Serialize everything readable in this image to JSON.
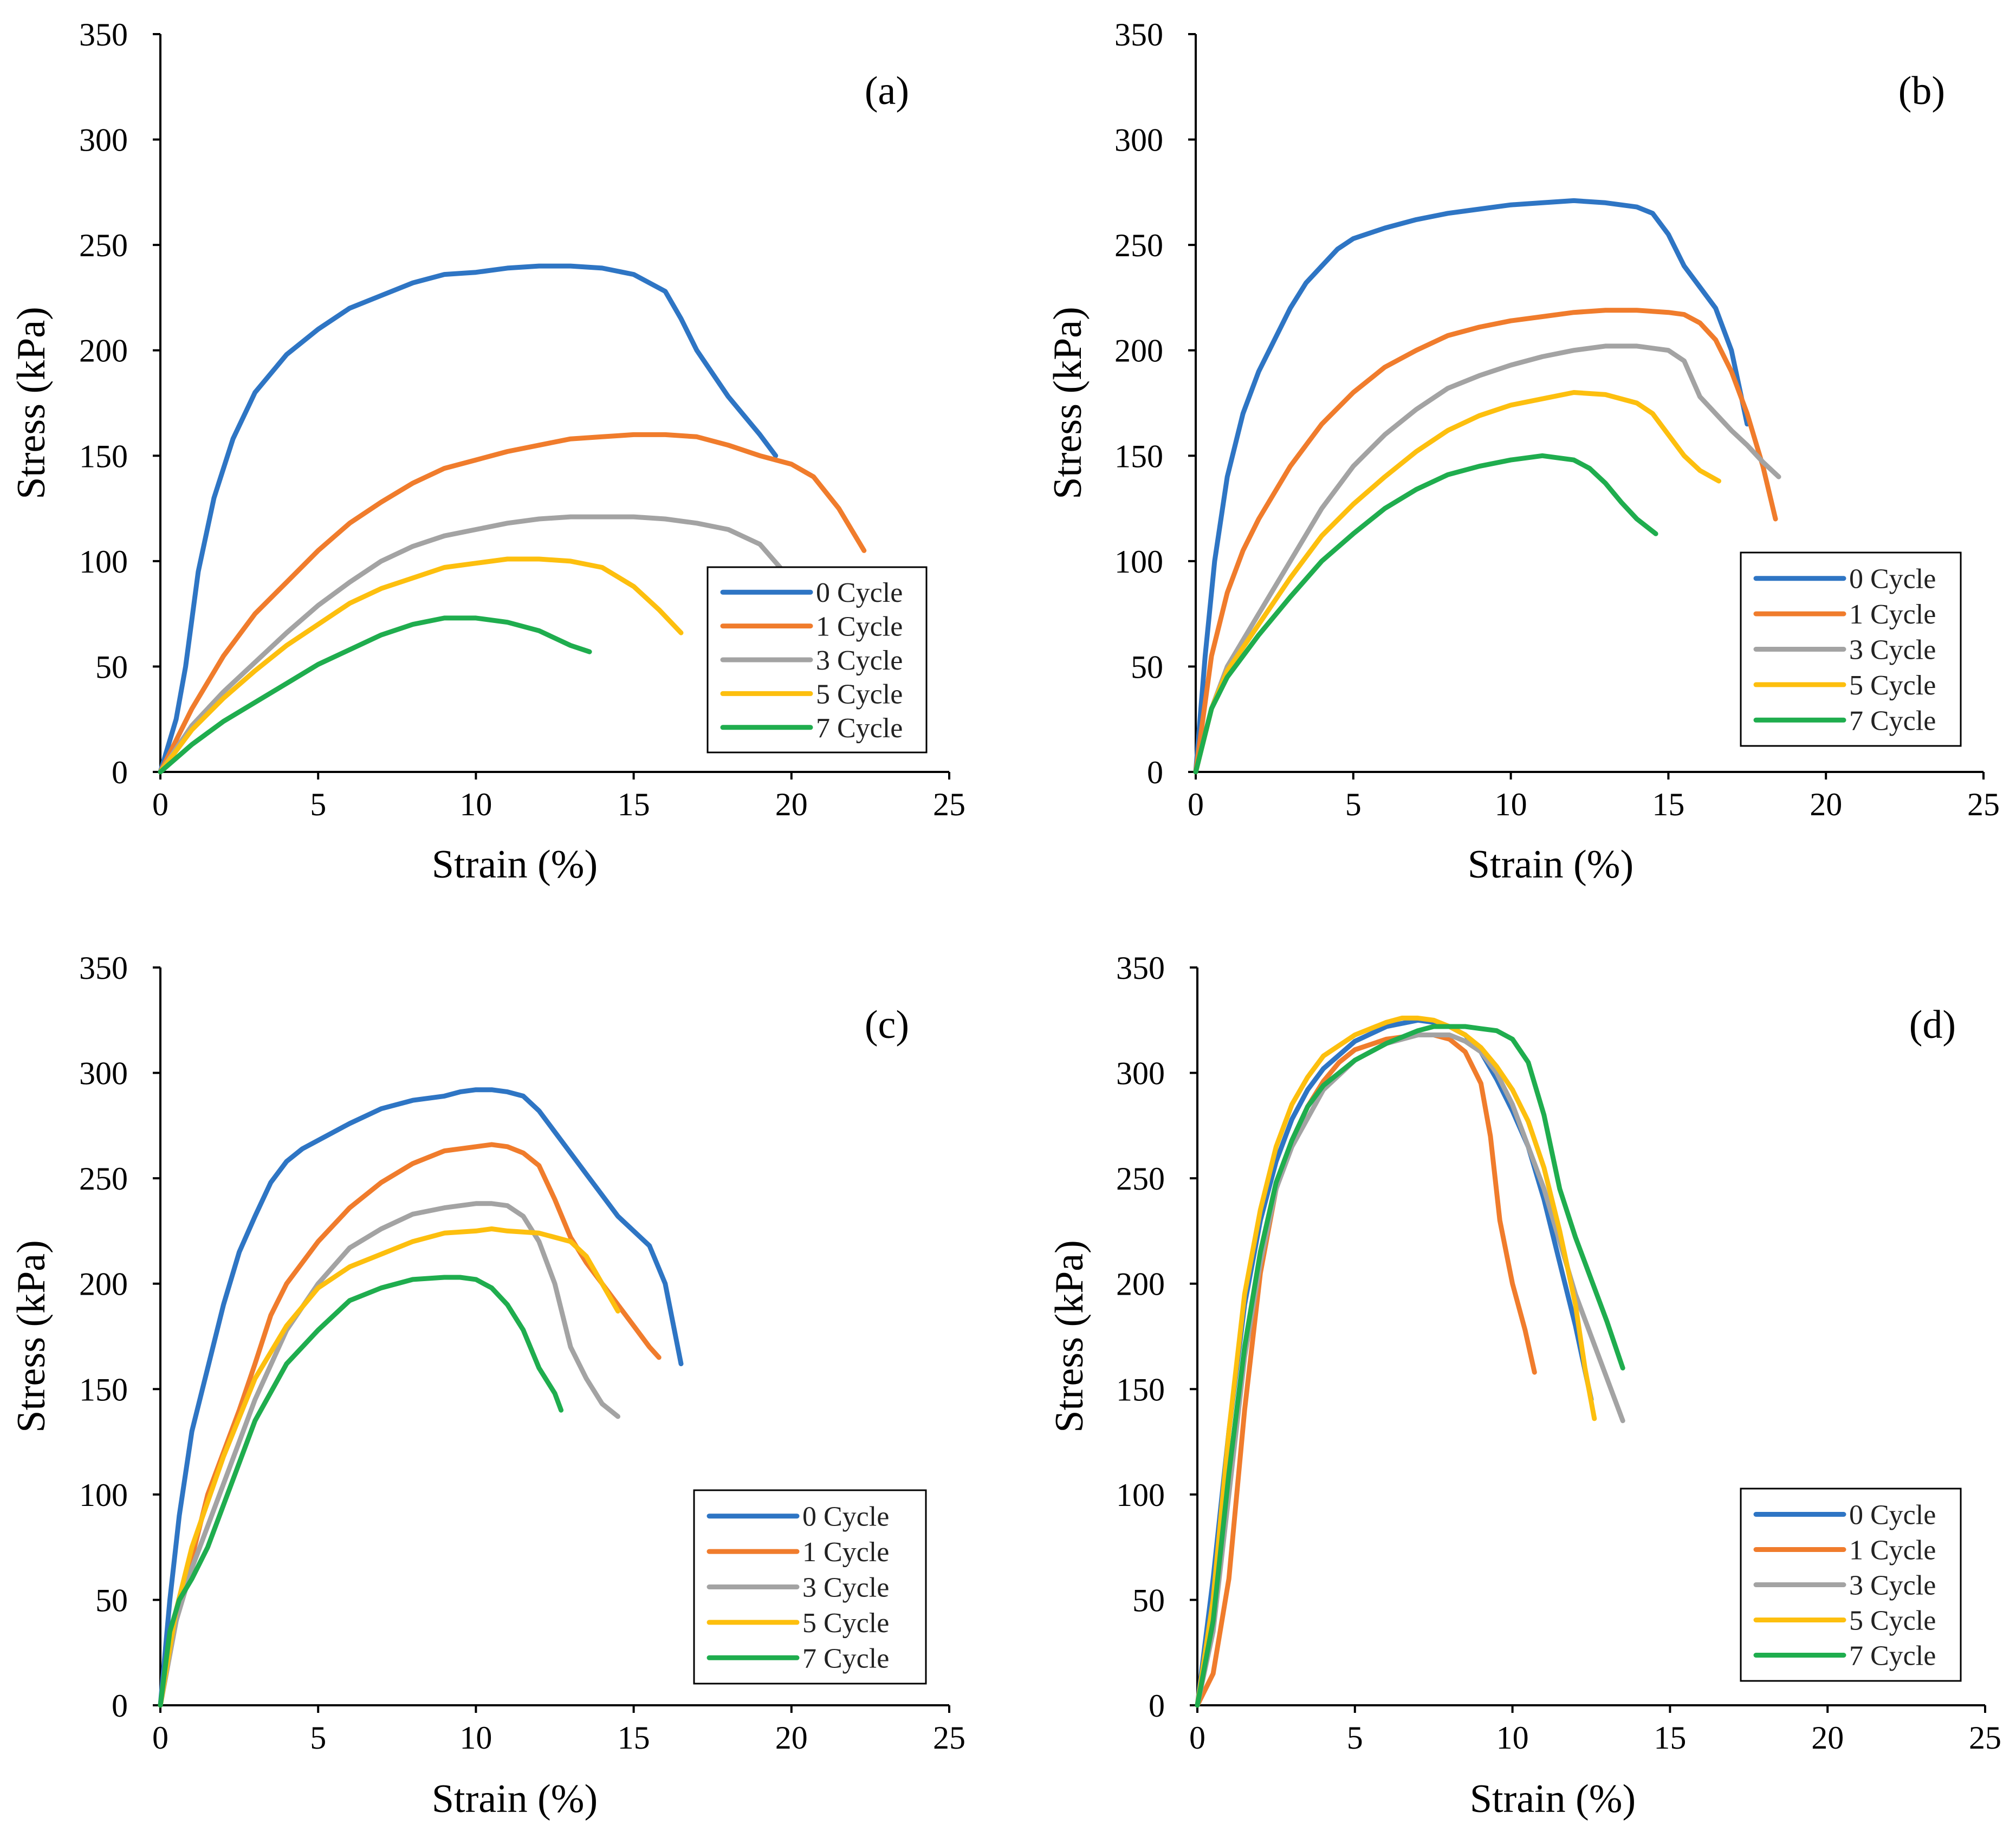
{
  "figure": {
    "series_colors": [
      "#2E75C4",
      "#F07C2C",
      "#A3A3A3",
      "#FDBF0E",
      "#1FAD4E"
    ]
  },
  "chart_data": [
    {
      "type": "line",
      "panel_label": "(a)",
      "xlabel": "Strain (%)",
      "ylabel": "Stress (kPa)",
      "xlim": [
        0,
        25
      ],
      "ylim": [
        0,
        350
      ],
      "xticks": [
        0,
        5,
        10,
        15,
        20,
        25
      ],
      "yticks": [
        0,
        50,
        100,
        150,
        200,
        250,
        300,
        350
      ],
      "legend_position": "bottom-right",
      "series": [
        {
          "name": "0 Cycle",
          "x": [
            0,
            0.5,
            0.8,
            1.2,
            1.7,
            2.3,
            3,
            4,
            5,
            6,
            7,
            8,
            9,
            10,
            11,
            12,
            13,
            14,
            15,
            16,
            16.5,
            17,
            18,
            19,
            19.5
          ],
          "y": [
            0,
            25,
            50,
            95,
            130,
            158,
            180,
            198,
            210,
            220,
            226,
            232,
            236,
            237,
            239,
            240,
            240,
            239,
            236,
            228,
            215,
            200,
            178,
            160,
            150
          ]
        },
        {
          "name": "1 Cycle",
          "x": [
            0,
            1,
            2,
            3,
            4,
            5,
            6,
            7,
            8,
            9,
            10,
            11,
            12,
            13,
            14,
            15,
            16,
            17,
            18,
            19,
            20,
            20.7,
            21.5,
            22.3
          ],
          "y": [
            0,
            30,
            55,
            75,
            90,
            105,
            118,
            128,
            137,
            144,
            148,
            152,
            155,
            158,
            159,
            160,
            160,
            159,
            155,
            150,
            146,
            140,
            125,
            105
          ]
        },
        {
          "name": "3 Cycle",
          "x": [
            0,
            1,
            2,
            3,
            4,
            5,
            6,
            7,
            8,
            9,
            10,
            11,
            12,
            13,
            14,
            15,
            16,
            17,
            18,
            19,
            19.7
          ],
          "y": [
            0,
            22,
            38,
            52,
            66,
            79,
            90,
            100,
            107,
            112,
            115,
            118,
            120,
            121,
            121,
            121,
            120,
            118,
            115,
            108,
            96
          ]
        },
        {
          "name": "5 Cycle",
          "x": [
            0,
            1,
            2,
            3,
            4,
            5,
            6,
            7,
            8,
            9,
            10,
            11,
            12,
            13,
            14,
            15,
            15.8,
            16.5
          ],
          "y": [
            0,
            20,
            35,
            48,
            60,
            70,
            80,
            87,
            92,
            97,
            99,
            101,
            101,
            100,
            97,
            88,
            77,
            66
          ]
        },
        {
          "name": "7 Cycle",
          "x": [
            0,
            1,
            2,
            3,
            4,
            5,
            6,
            7,
            8,
            9,
            10,
            11,
            12,
            13,
            13.6
          ],
          "y": [
            0,
            13,
            24,
            33,
            42,
            51,
            58,
            65,
            70,
            73,
            73,
            71,
            67,
            60,
            57
          ]
        }
      ]
    },
    {
      "type": "line",
      "panel_label": "(b)",
      "xlabel": "Strain (%)",
      "ylabel": "Stress (kPa)",
      "xlim": [
        0,
        25
      ],
      "ylim": [
        0,
        350
      ],
      "xticks": [
        0,
        5,
        10,
        15,
        20,
        25
      ],
      "yticks": [
        0,
        50,
        100,
        150,
        200,
        250,
        300,
        350
      ],
      "legend_position": "bottom-right",
      "series": [
        {
          "name": "0 Cycle",
          "x": [
            0,
            0.3,
            0.6,
            1,
            1.5,
            2,
            2.5,
            3,
            3.5,
            4,
            4.5,
            5,
            6,
            7,
            8,
            9,
            10,
            11,
            12,
            13,
            14,
            14.5,
            15,
            15.5,
            16,
            16.5,
            17,
            17.5
          ],
          "y": [
            0,
            55,
            100,
            140,
            170,
            190,
            205,
            220,
            232,
            240,
            248,
            253,
            258,
            262,
            265,
            267,
            269,
            270,
            271,
            270,
            268,
            265,
            255,
            240,
            230,
            220,
            200,
            165
          ]
        },
        {
          "name": "1 Cycle",
          "x": [
            0,
            0.5,
            1,
            1.5,
            2,
            3,
            4,
            5,
            6,
            7,
            8,
            9,
            10,
            11,
            12,
            13,
            14,
            15,
            15.5,
            16,
            16.5,
            17,
            17.5,
            18,
            18.4
          ],
          "y": [
            0,
            55,
            85,
            105,
            120,
            145,
            165,
            180,
            192,
            200,
            207,
            211,
            214,
            216,
            218,
            219,
            219,
            218,
            217,
            213,
            205,
            190,
            170,
            145,
            120
          ]
        },
        {
          "name": "3 Cycle",
          "x": [
            0,
            0.5,
            1,
            2,
            3,
            4,
            5,
            6,
            7,
            8,
            9,
            10,
            11,
            12,
            13,
            14,
            15,
            15.5,
            16,
            17,
            17.5,
            18,
            18.5
          ],
          "y": [
            0,
            30,
            50,
            75,
            100,
            125,
            145,
            160,
            172,
            182,
            188,
            193,
            197,
            200,
            202,
            202,
            200,
            195,
            178,
            162,
            155,
            147,
            140
          ]
        },
        {
          "name": "5 Cycle",
          "x": [
            0,
            0.5,
            1,
            2,
            3,
            4,
            5,
            6,
            7,
            8,
            9,
            10,
            11,
            12,
            13,
            14,
            14.5,
            15,
            15.5,
            16,
            16.6
          ],
          "y": [
            0,
            30,
            48,
            70,
            92,
            112,
            127,
            140,
            152,
            162,
            169,
            174,
            177,
            180,
            179,
            175,
            170,
            160,
            150,
            143,
            138
          ]
        },
        {
          "name": "7 Cycle",
          "x": [
            0,
            0.5,
            1,
            2,
            3,
            4,
            5,
            6,
            7,
            8,
            9,
            10,
            11,
            12,
            12.5,
            13,
            13.5,
            14,
            14.6
          ],
          "y": [
            0,
            30,
            45,
            65,
            83,
            100,
            113,
            125,
            134,
            141,
            145,
            148,
            150,
            148,
            144,
            137,
            128,
            120,
            113
          ]
        }
      ]
    },
    {
      "type": "line",
      "panel_label": "(c)",
      "xlabel": "Strain (%)",
      "ylabel": "Stress (kPa)",
      "xlim": [
        0,
        25
      ],
      "ylim": [
        0,
        350
      ],
      "xticks": [
        0,
        5,
        10,
        15,
        20,
        25
      ],
      "yticks": [
        0,
        50,
        100,
        150,
        200,
        250,
        300,
        350
      ],
      "legend_position": "bottom-right",
      "series": [
        {
          "name": "0 Cycle",
          "x": [
            0,
            0.3,
            0.6,
            1,
            1.5,
            2,
            2.5,
            3,
            3.5,
            4,
            4.5,
            5,
            6,
            7,
            8,
            9,
            9.5,
            10,
            10.5,
            11,
            11.5,
            12,
            12.5,
            13,
            13.5,
            14,
            14.5,
            15,
            15.5,
            16,
            16.5
          ],
          "y": [
            0,
            50,
            90,
            130,
            160,
            190,
            215,
            232,
            248,
            258,
            264,
            268,
            276,
            283,
            287,
            289,
            291,
            292,
            292,
            291,
            289,
            282,
            272,
            262,
            252,
            242,
            232,
            225,
            218,
            200,
            162
          ]
        },
        {
          "name": "1 Cycle",
          "x": [
            0,
            0.5,
            1,
            1.5,
            2,
            2.5,
            3,
            3.5,
            4,
            5,
            6,
            7,
            8,
            9,
            10,
            10.5,
            11,
            11.5,
            12,
            12.5,
            13,
            13.5,
            14,
            14.5,
            15,
            15.5,
            15.8
          ],
          "y": [
            0,
            40,
            70,
            100,
            120,
            140,
            162,
            185,
            200,
            220,
            236,
            248,
            257,
            263,
            265,
            266,
            265,
            262,
            256,
            240,
            222,
            210,
            200,
            190,
            180,
            170,
            165
          ]
        },
        {
          "name": "3 Cycle",
          "x": [
            0,
            0.5,
            1,
            2,
            3,
            4,
            5,
            6,
            7,
            8,
            9,
            10,
            10.5,
            11,
            11.5,
            12,
            12.5,
            13,
            13.5,
            14,
            14.5
          ],
          "y": [
            0,
            40,
            65,
            105,
            145,
            178,
            200,
            217,
            226,
            233,
            236,
            238,
            238,
            237,
            232,
            220,
            200,
            170,
            155,
            143,
            137
          ]
        },
        {
          "name": "5 Cycle",
          "x": [
            0,
            0.5,
            1,
            2,
            3,
            4,
            5,
            6,
            7,
            8,
            9,
            10,
            10.5,
            11,
            12,
            13,
            13.5,
            14,
            14.5
          ],
          "y": [
            0,
            45,
            75,
            118,
            155,
            180,
            198,
            208,
            214,
            220,
            224,
            225,
            226,
            225,
            224,
            220,
            213,
            200,
            187
          ]
        },
        {
          "name": "7 Cycle",
          "x": [
            0,
            0.3,
            0.6,
            1,
            1.5,
            2,
            3,
            4,
            5,
            6,
            7,
            8,
            9,
            9.5,
            10,
            10.5,
            11,
            11.5,
            12,
            12.5,
            12.7
          ],
          "y": [
            0,
            35,
            50,
            60,
            75,
            95,
            135,
            162,
            178,
            192,
            198,
            202,
            203,
            203,
            202,
            198,
            190,
            178,
            160,
            148,
            140
          ]
        }
      ]
    },
    {
      "type": "line",
      "panel_label": "(d)",
      "xlabel": "Strain (%)",
      "ylabel": "Stress (kPa)",
      "xlim": [
        0,
        25
      ],
      "ylim": [
        0,
        350
      ],
      "xticks": [
        0,
        5,
        10,
        15,
        20,
        25
      ],
      "yticks": [
        0,
        50,
        100,
        150,
        200,
        250,
        300,
        350
      ],
      "legend_position": "bottom-right",
      "series": [
        {
          "name": "0 Cycle",
          "x": [
            0,
            0.5,
            1,
            1.5,
            2,
            2.5,
            3,
            3.5,
            4,
            5,
            6,
            7,
            7.5,
            8,
            8.5,
            9,
            9.5,
            10,
            10.5,
            11,
            11.5,
            12,
            12.5
          ],
          "y": [
            0,
            60,
            130,
            190,
            230,
            258,
            278,
            292,
            302,
            315,
            322,
            325,
            324,
            322,
            318,
            310,
            297,
            282,
            265,
            240,
            210,
            180,
            145
          ]
        },
        {
          "name": "1 Cycle",
          "x": [
            0,
            0.5,
            1,
            1.5,
            2,
            2.5,
            3,
            3.5,
            4,
            4.5,
            5,
            6,
            7,
            7.5,
            8,
            8.5,
            9,
            9.3,
            9.6,
            10,
            10.4,
            10.7
          ],
          "y": [
            0,
            15,
            60,
            140,
            205,
            245,
            268,
            284,
            296,
            305,
            311,
            316,
            318,
            318,
            316,
            310,
            295,
            270,
            230,
            200,
            178,
            158
          ]
        },
        {
          "name": "3 Cycle",
          "x": [
            0,
            0.5,
            1,
            1.5,
            2,
            2.5,
            3,
            4,
            5,
            6,
            7,
            8,
            8.5,
            9,
            9.5,
            10,
            10.5,
            11,
            11.5,
            12,
            12.5,
            13,
            13.5
          ],
          "y": [
            0,
            35,
            100,
            165,
            210,
            245,
            265,
            292,
            306,
            314,
            318,
            318,
            315,
            310,
            300,
            285,
            265,
            245,
            220,
            195,
            175,
            155,
            135
          ]
        },
        {
          "name": "5 Cycle",
          "x": [
            0,
            0.5,
            1,
            1.5,
            2,
            2.5,
            3,
            3.5,
            4,
            5,
            6,
            6.5,
            7,
            7.5,
            8,
            8.5,
            9,
            9.5,
            10,
            10.5,
            11,
            11.5,
            12,
            12.3,
            12.6
          ],
          "y": [
            0,
            50,
            130,
            195,
            235,
            265,
            285,
            298,
            308,
            318,
            324,
            326,
            326,
            325,
            322,
            318,
            312,
            303,
            292,
            277,
            255,
            225,
            190,
            160,
            136
          ]
        },
        {
          "name": "7 Cycle",
          "x": [
            0,
            0.5,
            1,
            1.5,
            2,
            2.5,
            3,
            3.5,
            4,
            5,
            6,
            7,
            7.5,
            8,
            8.5,
            9,
            9.5,
            10,
            10.5,
            11,
            11.5,
            12,
            12.5,
            13,
            13.5
          ],
          "y": [
            0,
            40,
            110,
            170,
            215,
            248,
            268,
            284,
            294,
            306,
            314,
            320,
            322,
            322,
            322,
            321,
            320,
            316,
            305,
            280,
            245,
            222,
            202,
            182,
            160
          ]
        }
      ]
    }
  ]
}
